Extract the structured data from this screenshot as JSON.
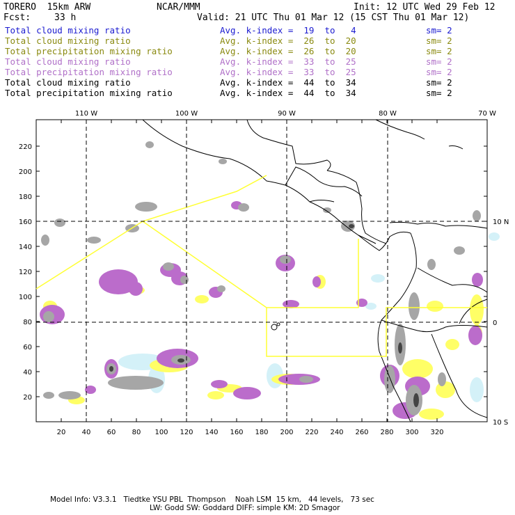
{
  "header": {
    "model": "TORERO  15km ARW",
    "org": "NCAR/MMM",
    "init": "Init: 12 UTC Wed 29 Feb 12",
    "fcst_label": "Fcst:",
    "fcst_value": "33 h",
    "valid": "Valid: 21 UTC Thu 01 Mar 12 (15 CST Thu 01 Mar 12)"
  },
  "legend": [
    {
      "field": "Total cloud mixing ratio",
      "kindex": "Avg. k-index =  19  to   4",
      "sm": "sm= 2",
      "color": "#1b1bd0"
    },
    {
      "field": "Total cloud mixing ratio",
      "kindex": "Avg. k-index =  26  to  20",
      "sm": "sm= 2",
      "color": "#8a8a10"
    },
    {
      "field": "Total precipitation mixing ratio",
      "kindex": "Avg. k-index =  26  to  20",
      "sm": "sm= 2",
      "color": "#8a8a10"
    },
    {
      "field": "Total cloud mixing ratio",
      "kindex": "Avg. k-index =  33  to  25",
      "sm": "sm= 2",
      "color": "#b070c8"
    },
    {
      "field": "Total precipitation mixing ratio",
      "kindex": "Avg. k-index =  33  to  25",
      "sm": "sm= 2",
      "color": "#b070c8"
    },
    {
      "field": "Total cloud mixing ratio",
      "kindex": "Avg. k-index =  44  to  34",
      "sm": "sm= 2",
      "color": "#000000"
    },
    {
      "field": "Total precipitation mixing ratio",
      "kindex": "Avg. k-index =  44  to  34",
      "sm": "sm= 2",
      "color": "#000000"
    }
  ],
  "axes": {
    "top_lon": [
      "110 W",
      "100 W",
      "90 W",
      "80 W",
      "70 W"
    ],
    "right_lat": [
      "10 N",
      "0",
      "10 S"
    ],
    "left_y": [
      "220",
      "200",
      "180",
      "160",
      "140",
      "120",
      "100",
      "80",
      "60",
      "40",
      "20"
    ],
    "bottom_x": [
      "20",
      "40",
      "60",
      "80",
      "100",
      "120",
      "140",
      "160",
      "180",
      "200",
      "220",
      "240",
      "260",
      "280",
      "300",
      "320"
    ]
  },
  "colors": {
    "land_line": "#000000",
    "domain_box": "#ffff33",
    "gray_cloud": "#a6a6a6",
    "purple_precip": "#bb6ccb",
    "yellow_precip": "#ffff66",
    "light_cyan": "#d4f1f8"
  },
  "footer": {
    "line1": "Model Info: V3.3.1   Tiedtke YSU PBL  Thompson    Noah LSM  15 km,   44 levels,   73 sec",
    "line2": "LW: Godd SW: Goddard DIFF: simple KM: 2D Smagor"
  }
}
